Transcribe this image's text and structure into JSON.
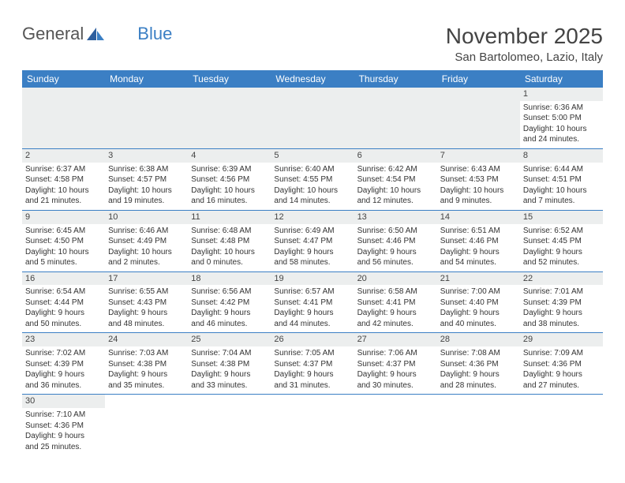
{
  "logo": {
    "text_general": "General",
    "text_blue": "Blue"
  },
  "header": {
    "month": "November 2025",
    "location": "San Bartolomeo, Lazio, Italy"
  },
  "colors": {
    "header_bg": "#3b7fc4",
    "header_text": "#ffffff",
    "cell_border": "#3b7fc4",
    "number_bg": "#eceeee",
    "text": "#333333"
  },
  "day_headers": [
    "Sunday",
    "Monday",
    "Tuesday",
    "Wednesday",
    "Thursday",
    "Friday",
    "Saturday"
  ],
  "weeks": [
    [
      null,
      null,
      null,
      null,
      null,
      null,
      {
        "n": "1",
        "sunrise": "Sunrise: 6:36 AM",
        "sunset": "Sunset: 5:00 PM",
        "daylight1": "Daylight: 10 hours",
        "daylight2": "and 24 minutes."
      }
    ],
    [
      {
        "n": "2",
        "sunrise": "Sunrise: 6:37 AM",
        "sunset": "Sunset: 4:58 PM",
        "daylight1": "Daylight: 10 hours",
        "daylight2": "and 21 minutes."
      },
      {
        "n": "3",
        "sunrise": "Sunrise: 6:38 AM",
        "sunset": "Sunset: 4:57 PM",
        "daylight1": "Daylight: 10 hours",
        "daylight2": "and 19 minutes."
      },
      {
        "n": "4",
        "sunrise": "Sunrise: 6:39 AM",
        "sunset": "Sunset: 4:56 PM",
        "daylight1": "Daylight: 10 hours",
        "daylight2": "and 16 minutes."
      },
      {
        "n": "5",
        "sunrise": "Sunrise: 6:40 AM",
        "sunset": "Sunset: 4:55 PM",
        "daylight1": "Daylight: 10 hours",
        "daylight2": "and 14 minutes."
      },
      {
        "n": "6",
        "sunrise": "Sunrise: 6:42 AM",
        "sunset": "Sunset: 4:54 PM",
        "daylight1": "Daylight: 10 hours",
        "daylight2": "and 12 minutes."
      },
      {
        "n": "7",
        "sunrise": "Sunrise: 6:43 AM",
        "sunset": "Sunset: 4:53 PM",
        "daylight1": "Daylight: 10 hours",
        "daylight2": "and 9 minutes."
      },
      {
        "n": "8",
        "sunrise": "Sunrise: 6:44 AM",
        "sunset": "Sunset: 4:51 PM",
        "daylight1": "Daylight: 10 hours",
        "daylight2": "and 7 minutes."
      }
    ],
    [
      {
        "n": "9",
        "sunrise": "Sunrise: 6:45 AM",
        "sunset": "Sunset: 4:50 PM",
        "daylight1": "Daylight: 10 hours",
        "daylight2": "and 5 minutes."
      },
      {
        "n": "10",
        "sunrise": "Sunrise: 6:46 AM",
        "sunset": "Sunset: 4:49 PM",
        "daylight1": "Daylight: 10 hours",
        "daylight2": "and 2 minutes."
      },
      {
        "n": "11",
        "sunrise": "Sunrise: 6:48 AM",
        "sunset": "Sunset: 4:48 PM",
        "daylight1": "Daylight: 10 hours",
        "daylight2": "and 0 minutes."
      },
      {
        "n": "12",
        "sunrise": "Sunrise: 6:49 AM",
        "sunset": "Sunset: 4:47 PM",
        "daylight1": "Daylight: 9 hours",
        "daylight2": "and 58 minutes."
      },
      {
        "n": "13",
        "sunrise": "Sunrise: 6:50 AM",
        "sunset": "Sunset: 4:46 PM",
        "daylight1": "Daylight: 9 hours",
        "daylight2": "and 56 minutes."
      },
      {
        "n": "14",
        "sunrise": "Sunrise: 6:51 AM",
        "sunset": "Sunset: 4:46 PM",
        "daylight1": "Daylight: 9 hours",
        "daylight2": "and 54 minutes."
      },
      {
        "n": "15",
        "sunrise": "Sunrise: 6:52 AM",
        "sunset": "Sunset: 4:45 PM",
        "daylight1": "Daylight: 9 hours",
        "daylight2": "and 52 minutes."
      }
    ],
    [
      {
        "n": "16",
        "sunrise": "Sunrise: 6:54 AM",
        "sunset": "Sunset: 4:44 PM",
        "daylight1": "Daylight: 9 hours",
        "daylight2": "and 50 minutes."
      },
      {
        "n": "17",
        "sunrise": "Sunrise: 6:55 AM",
        "sunset": "Sunset: 4:43 PM",
        "daylight1": "Daylight: 9 hours",
        "daylight2": "and 48 minutes."
      },
      {
        "n": "18",
        "sunrise": "Sunrise: 6:56 AM",
        "sunset": "Sunset: 4:42 PM",
        "daylight1": "Daylight: 9 hours",
        "daylight2": "and 46 minutes."
      },
      {
        "n": "19",
        "sunrise": "Sunrise: 6:57 AM",
        "sunset": "Sunset: 4:41 PM",
        "daylight1": "Daylight: 9 hours",
        "daylight2": "and 44 minutes."
      },
      {
        "n": "20",
        "sunrise": "Sunrise: 6:58 AM",
        "sunset": "Sunset: 4:41 PM",
        "daylight1": "Daylight: 9 hours",
        "daylight2": "and 42 minutes."
      },
      {
        "n": "21",
        "sunrise": "Sunrise: 7:00 AM",
        "sunset": "Sunset: 4:40 PM",
        "daylight1": "Daylight: 9 hours",
        "daylight2": "and 40 minutes."
      },
      {
        "n": "22",
        "sunrise": "Sunrise: 7:01 AM",
        "sunset": "Sunset: 4:39 PM",
        "daylight1": "Daylight: 9 hours",
        "daylight2": "and 38 minutes."
      }
    ],
    [
      {
        "n": "23",
        "sunrise": "Sunrise: 7:02 AM",
        "sunset": "Sunset: 4:39 PM",
        "daylight1": "Daylight: 9 hours",
        "daylight2": "and 36 minutes."
      },
      {
        "n": "24",
        "sunrise": "Sunrise: 7:03 AM",
        "sunset": "Sunset: 4:38 PM",
        "daylight1": "Daylight: 9 hours",
        "daylight2": "and 35 minutes."
      },
      {
        "n": "25",
        "sunrise": "Sunrise: 7:04 AM",
        "sunset": "Sunset: 4:38 PM",
        "daylight1": "Daylight: 9 hours",
        "daylight2": "and 33 minutes."
      },
      {
        "n": "26",
        "sunrise": "Sunrise: 7:05 AM",
        "sunset": "Sunset: 4:37 PM",
        "daylight1": "Daylight: 9 hours",
        "daylight2": "and 31 minutes."
      },
      {
        "n": "27",
        "sunrise": "Sunrise: 7:06 AM",
        "sunset": "Sunset: 4:37 PM",
        "daylight1": "Daylight: 9 hours",
        "daylight2": "and 30 minutes."
      },
      {
        "n": "28",
        "sunrise": "Sunrise: 7:08 AM",
        "sunset": "Sunset: 4:36 PM",
        "daylight1": "Daylight: 9 hours",
        "daylight2": "and 28 minutes."
      },
      {
        "n": "29",
        "sunrise": "Sunrise: 7:09 AM",
        "sunset": "Sunset: 4:36 PM",
        "daylight1": "Daylight: 9 hours",
        "daylight2": "and 27 minutes."
      }
    ],
    [
      {
        "n": "30",
        "sunrise": "Sunrise: 7:10 AM",
        "sunset": "Sunset: 4:36 PM",
        "daylight1": "Daylight: 9 hours",
        "daylight2": "and 25 minutes."
      },
      null,
      null,
      null,
      null,
      null,
      null
    ]
  ]
}
